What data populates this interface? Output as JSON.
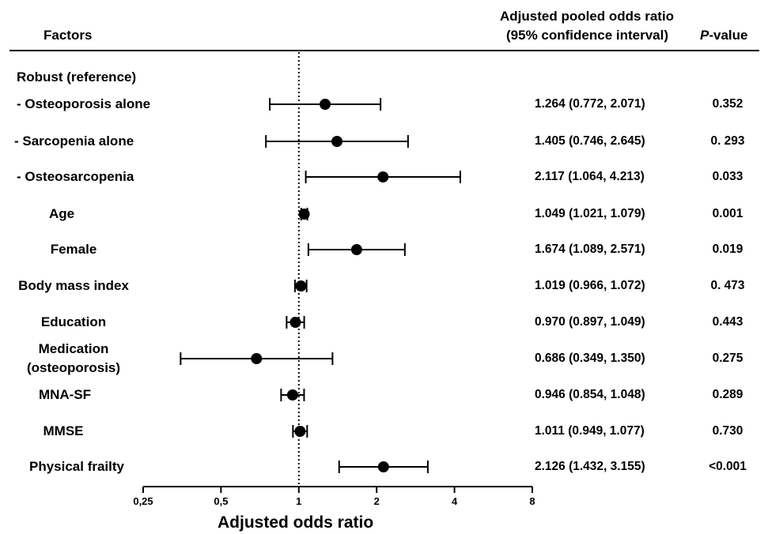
{
  "header": {
    "factors": "Factors",
    "or_line1": "Adjusted pooled odds ratio",
    "or_line2": "(95% confidence interval)",
    "p_italic": "P",
    "p_rest": "-value"
  },
  "chart_data": {
    "type": "forest",
    "xscale": "log2",
    "xlim": [
      0.25,
      8
    ],
    "reference_line": 1,
    "xticks": [
      0.25,
      0.5,
      1,
      2,
      4,
      8
    ],
    "xtick_labels": [
      "0,25",
      "0,5",
      "1",
      "2",
      "4",
      "8"
    ],
    "xlabel": "Adjusted odds ratio",
    "reference_row": "Robust (reference)",
    "rows": [
      {
        "label": "- Osteoporosis alone",
        "label2": "",
        "or": 1.264,
        "lo": 0.772,
        "hi": 2.071,
        "ci_text": "1.264 (0.772, 2.071)",
        "p": "0.352"
      },
      {
        "label": "- Sarcopenia alone",
        "label2": "",
        "or": 1.405,
        "lo": 0.746,
        "hi": 2.645,
        "ci_text": "1.405 (0.746, 2.645)",
        "p": "0. 293"
      },
      {
        "label": "- Osteosarcopenia",
        "label2": "",
        "or": 2.117,
        "lo": 1.064,
        "hi": 4.213,
        "ci_text": "2.117 (1.064, 4.213)",
        "p": "0.033"
      },
      {
        "label": "Age",
        "label2": "",
        "or": 1.049,
        "lo": 1.021,
        "hi": 1.079,
        "ci_text": "1.049 (1.021, 1.079)",
        "p": "0.001"
      },
      {
        "label": "Female",
        "label2": "",
        "or": 1.674,
        "lo": 1.089,
        "hi": 2.571,
        "ci_text": "1.674 (1.089, 2.571)",
        "p": "0.019"
      },
      {
        "label": "Body mass index",
        "label2": "",
        "or": 1.019,
        "lo": 0.966,
        "hi": 1.072,
        "ci_text": "1.019 (0.966, 1.072)",
        "p": "0. 473"
      },
      {
        "label": "Education",
        "label2": "",
        "or": 0.97,
        "lo": 0.897,
        "hi": 1.049,
        "ci_text": "0.970 (0.897, 1.049)",
        "p": "0.443"
      },
      {
        "label": "Medication",
        "label2": "(osteoporosis)",
        "or": 0.686,
        "lo": 0.349,
        "hi": 1.35,
        "ci_text": "0.686 (0.349, 1.350)",
        "p": "0.275"
      },
      {
        "label": "MNA-SF",
        "label2": "",
        "or": 0.946,
        "lo": 0.854,
        "hi": 1.048,
        "ci_text": "0.946 (0.854, 1.048)",
        "p": "0.289"
      },
      {
        "label": "MMSE",
        "label2": "",
        "or": 1.011,
        "lo": 0.949,
        "hi": 1.077,
        "ci_text": "1.011 (0.949, 1.077)",
        "p": "0.730"
      },
      {
        "label": "Physical frailty",
        "label2": "",
        "or": 2.126,
        "lo": 1.432,
        "hi": 3.155,
        "ci_text": "2.126 (1.432, 3.155)",
        "p": "<0.001"
      }
    ]
  }
}
